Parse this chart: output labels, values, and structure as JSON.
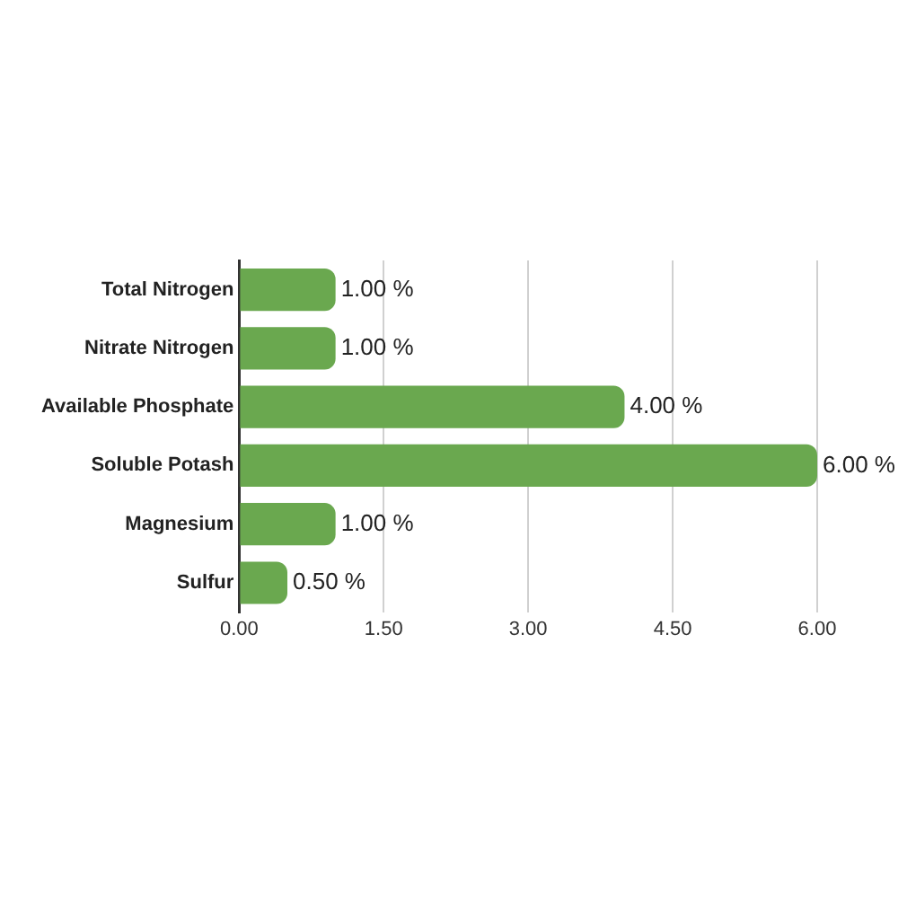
{
  "chart_data": {
    "type": "bar",
    "orientation": "horizontal",
    "categories": [
      "Total Nitrogen",
      "Nitrate Nitrogen",
      "Available Phosphate",
      "Soluble Potash",
      "Magnesium",
      "Sulfur"
    ],
    "values": [
      1,
      1,
      4,
      6,
      1,
      0.5
    ],
    "value_labels": [
      "1.00 %",
      "1.00 %",
      "4.00 %",
      "6.00 %",
      "1.00 %",
      "0.50 %"
    ],
    "color": "#6aa84f",
    "xlim": [
      0,
      6
    ],
    "xticks": [
      {
        "value": 0,
        "label": "0.00"
      },
      {
        "value": 1.5,
        "label": "1.50"
      },
      {
        "value": 3,
        "label": "3.00"
      },
      {
        "value": 4.5,
        "label": "4.50"
      },
      {
        "value": 6,
        "label": "6.00"
      }
    ],
    "grid": "x",
    "legend": false
  }
}
